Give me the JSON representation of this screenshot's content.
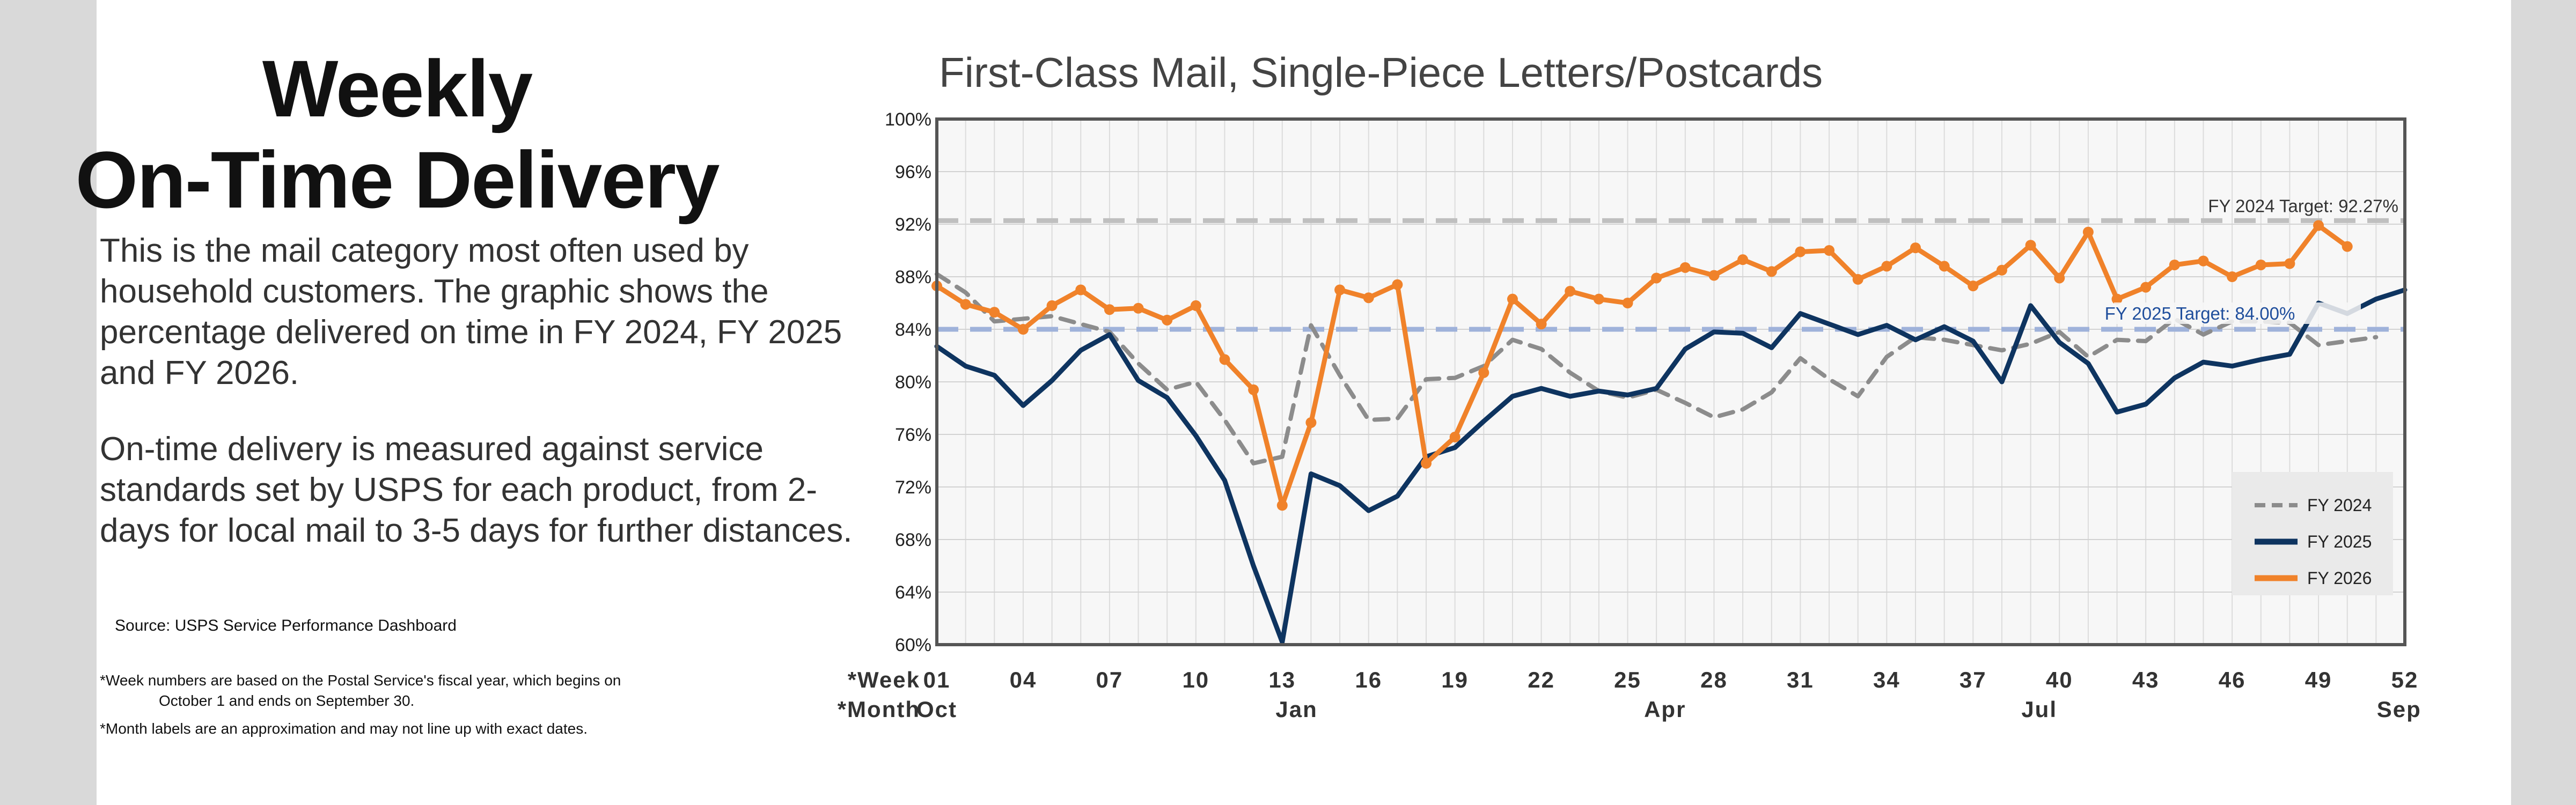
{
  "headline": {
    "line1": "Weekly",
    "line2": "On-Time Delivery"
  },
  "description": {
    "para1": "This is the mail category most often used by household customers. The graphic shows the percentage delivered on time in FY 2024, FY 2025 and FY 2026.",
    "para2": "On-time delivery is measured against service standards set by USPS for each product, from 2-days for local mail to 3-5 days for further distances."
  },
  "source": "Source: USPS Service Performance Dashboard",
  "footnotes": {
    "fn1_line1": "*Week numbers are based on the Postal Service's fiscal year, which begins on",
    "fn1_line2": "October 1 and ends on September 30.",
    "fn2": "*Month labels are an approximation and may not line up with exact dates."
  },
  "chart_data": {
    "type": "line",
    "title": "First-Class Mail, Single-Piece Letters/Postcards",
    "xlabel": "*Week",
    "month_label": "*Month",
    "xlim": [
      1,
      52
    ],
    "ylim": [
      60,
      100
    ],
    "y_ticks": [
      "60%",
      "64%",
      "68%",
      "72%",
      "76%",
      "80%",
      "84%",
      "88%",
      "92%",
      "96%",
      "100%"
    ],
    "y_tick_values": [
      60,
      64,
      68,
      72,
      76,
      80,
      84,
      88,
      92,
      96,
      100
    ],
    "x_ticks": [
      "01",
      "04",
      "07",
      "10",
      "13",
      "16",
      "19",
      "22",
      "25",
      "28",
      "31",
      "34",
      "37",
      "40",
      "43",
      "46",
      "49",
      "52"
    ],
    "x_tick_values": [
      1,
      4,
      7,
      10,
      13,
      16,
      19,
      22,
      25,
      28,
      31,
      34,
      37,
      40,
      43,
      46,
      49,
      52
    ],
    "months": [
      {
        "label": "Oct",
        "week": 1
      },
      {
        "label": "Jan",
        "week": 13.5
      },
      {
        "label": "Apr",
        "week": 26.3
      },
      {
        "label": "Jul",
        "week": 39.3
      },
      {
        "label": "Sep",
        "week": 51.8
      }
    ],
    "grid": true,
    "legend_position": "bottom-right",
    "targets": [
      {
        "label": "FY 2024 Target: 92.27%",
        "value": 92.27,
        "color": "#bfbfbf"
      },
      {
        "label": "FY 2025 Target: 84.00%",
        "value": 84.0,
        "color": "#9fb2da",
        "label_color": "#1f4e9c"
      }
    ],
    "series": [
      {
        "name": "FY 2024",
        "color": "#8c8c8c",
        "style": "dashed",
        "markers": false,
        "values": [
          88.2,
          86.8,
          84.6,
          84.8,
          85.0,
          84.4,
          83.8,
          81.4,
          79.4,
          80.0,
          77.1,
          73.8,
          74.3,
          84.3,
          80.5,
          77.1,
          77.2,
          80.2,
          80.3,
          81.2,
          83.2,
          82.5,
          80.7,
          79.3,
          78.8,
          79.4,
          78.4,
          77.3,
          77.9,
          79.2,
          81.8,
          80.2,
          78.9,
          81.9,
          83.4,
          83.2,
          82.8,
          82.4,
          82.9,
          83.8,
          81.9,
          83.2,
          83.1,
          84.8,
          83.6,
          84.6,
          84.6,
          84.5,
          82.8,
          83.1,
          83.4
        ]
      },
      {
        "name": "FY 2025",
        "color": "#0e3460",
        "style": "solid",
        "markers": false,
        "values": [
          82.7,
          81.2,
          80.5,
          78.2,
          80.1,
          82.4,
          83.6,
          80.1,
          78.8,
          75.9,
          72.5,
          66.0,
          60.2,
          73.0,
          72.1,
          70.2,
          71.3,
          74.3,
          75.0,
          77.0,
          78.9,
          79.5,
          78.9,
          79.3,
          79.0,
          79.5,
          82.5,
          83.8,
          83.7,
          82.6,
          85.2,
          84.4,
          83.6,
          84.3,
          83.2,
          84.2,
          83.1,
          80.0,
          85.8,
          83.0,
          81.4,
          77.7,
          78.3,
          80.3,
          81.5,
          81.2,
          81.7,
          82.1,
          86.0,
          85.2,
          86.3,
          87.0
        ]
      },
      {
        "name": "FY 2026",
        "color": "#f0822a",
        "style": "solid",
        "markers": true,
        "values": [
          87.3,
          85.9,
          85.3,
          84.0,
          85.8,
          87.0,
          85.5,
          85.6,
          84.7,
          85.8,
          81.7,
          79.4,
          70.6,
          76.9,
          87.0,
          86.4,
          87.4,
          73.8,
          75.8,
          80.7,
          86.3,
          84.4,
          86.9,
          86.3,
          86.0,
          87.9,
          88.7,
          88.1,
          89.3,
          88.4,
          89.9,
          90.0,
          87.8,
          88.8,
          90.2,
          88.8,
          87.3,
          88.5,
          90.4,
          87.9,
          91.4,
          86.3,
          87.2,
          88.9,
          89.2,
          88.0,
          88.9,
          89.0,
          91.9,
          90.3
        ]
      }
    ]
  }
}
